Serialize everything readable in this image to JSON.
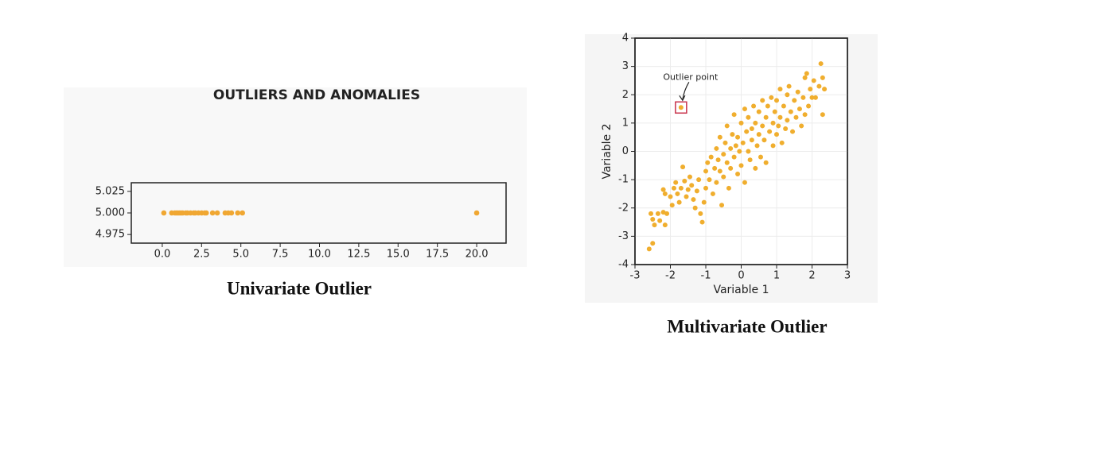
{
  "chart_data": [
    {
      "type": "scatter",
      "title": "OUTLIERS AND ANOMALIES",
      "caption": "Univariate Outlier",
      "color": "#f0a732",
      "x": [
        0.1,
        0.6,
        0.8,
        0.9,
        1.0,
        1.1,
        1.2,
        1.3,
        1.5,
        1.6,
        1.8,
        2.0,
        2.1,
        2.3,
        2.5,
        2.7,
        2.8,
        3.2,
        3.5,
        4.0,
        4.2,
        4.4,
        4.8,
        5.1,
        20.0
      ],
      "y": [
        5.0,
        5.0,
        5.0,
        5.0,
        5.0,
        5.0,
        5.0,
        5.0,
        5.0,
        5.0,
        5.0,
        5.0,
        5.0,
        5.0,
        5.0,
        5.0,
        5.0,
        5.0,
        5.0,
        5.0,
        5.0,
        5.0,
        5.0,
        5.0,
        5.0
      ],
      "xlim": [
        -1.97,
        21.87
      ],
      "ylim": [
        4.965,
        5.035
      ],
      "xticks": [
        {
          "value": 0,
          "label": "0.0"
        },
        2.5,
        {
          "value": 5,
          "label": "5.0"
        },
        7.5,
        {
          "value": 10,
          "label": "10.0"
        },
        12.5,
        {
          "value": 15,
          "label": "15.0"
        },
        17.5,
        {
          "value": 20,
          "label": "20.0"
        }
      ],
      "yticks": [
        4.975,
        {
          "value": 5,
          "label": "5.000"
        },
        5.025
      ],
      "grid": false
    },
    {
      "type": "scatter",
      "caption": "Multivariate Outlier",
      "xlabel": "Variable 1",
      "ylabel": "Variable 2",
      "color": "#f0ae2e",
      "x": [
        -2.6,
        -2.5,
        -2.55,
        -2.5,
        -2.45,
        -2.35,
        -2.3,
        -2.2,
        -2.15,
        -2.1,
        -2.2,
        -2.15,
        -2.0,
        -1.95,
        -1.9,
        -1.85,
        -1.8,
        -1.75,
        -1.7,
        -1.65,
        -1.6,
        -1.55,
        -1.5,
        -1.45,
        -1.4,
        -1.35,
        -1.3,
        -1.25,
        -1.2,
        -1.15,
        -1.1,
        -1.05,
        -1.0,
        -1.0,
        -0.95,
        -0.9,
        -0.85,
        -0.8,
        -0.75,
        -0.7,
        -0.7,
        -0.65,
        -0.6,
        -0.6,
        -0.55,
        -0.5,
        -0.5,
        -0.45,
        -0.4,
        -0.4,
        -0.35,
        -0.3,
        -0.3,
        -0.25,
        -0.2,
        -0.2,
        -0.15,
        -0.1,
        -0.1,
        -0.05,
        0.0,
        0.0,
        0.05,
        0.1,
        0.1,
        0.15,
        0.2,
        0.2,
        0.25,
        0.3,
        0.3,
        0.35,
        0.4,
        0.4,
        0.45,
        0.5,
        0.5,
        0.55,
        0.6,
        0.6,
        0.65,
        0.7,
        0.7,
        0.75,
        0.8,
        0.85,
        0.9,
        0.9,
        0.95,
        1.0,
        1.0,
        1.05,
        1.1,
        1.1,
        1.15,
        1.2,
        1.25,
        1.3,
        1.3,
        1.35,
        1.4,
        1.45,
        1.5,
        1.55,
        1.6,
        1.65,
        1.7,
        1.75,
        1.8,
        1.8,
        1.85,
        1.9,
        1.95,
        2.0,
        2.05,
        2.1,
        2.2,
        2.25,
        2.3,
        2.3,
        2.35,
        -1.7
      ],
      "y": [
        -3.45,
        -3.25,
        -2.2,
        -2.4,
        -2.6,
        -2.2,
        -2.45,
        -2.15,
        -2.6,
        -2.2,
        -1.35,
        -1.5,
        -1.6,
        -1.9,
        -1.3,
        -1.1,
        -1.5,
        -1.8,
        -1.3,
        -0.55,
        -1.05,
        -1.6,
        -1.35,
        -0.9,
        -1.2,
        -1.7,
        -2.0,
        -1.4,
        -1.0,
        -2.2,
        -2.5,
        -1.8,
        -0.7,
        -1.3,
        -0.4,
        -1.0,
        -0.2,
        -1.5,
        -0.6,
        0.1,
        -1.1,
        -0.3,
        0.5,
        -0.7,
        -1.9,
        -0.1,
        -0.9,
        0.3,
        -0.4,
        0.9,
        -1.3,
        0.1,
        -0.6,
        0.6,
        -0.2,
        1.3,
        0.2,
        -0.8,
        0.5,
        0.0,
        1.0,
        -0.5,
        0.3,
        1.5,
        -1.1,
        0.7,
        0.0,
        1.2,
        -0.3,
        0.8,
        0.4,
        1.6,
        -0.6,
        1.0,
        0.2,
        1.4,
        0.6,
        -0.2,
        1.8,
        0.9,
        0.4,
        1.2,
        -0.4,
        1.6,
        0.7,
        1.9,
        1.0,
        0.2,
        1.4,
        0.6,
        1.8,
        0.9,
        2.2,
        1.2,
        0.3,
        1.6,
        0.8,
        2.0,
        1.1,
        2.3,
        1.4,
        0.7,
        1.8,
        1.2,
        2.1,
        1.5,
        0.9,
        1.9,
        2.6,
        1.3,
        2.75,
        1.6,
        2.2,
        1.9,
        2.5,
        1.9,
        2.3,
        3.1,
        2.6,
        1.3,
        2.2,
        1.55
      ],
      "annotation": {
        "text": "Outlier point",
        "x": -1.7,
        "y": 1.55
      },
      "xlim": [
        -3,
        3
      ],
      "ylim": [
        -4,
        4
      ],
      "xticks": [
        -3,
        -2,
        -1,
        0,
        1,
        2,
        3
      ],
      "yticks": [
        -4,
        -3,
        -2,
        -1,
        0,
        1,
        2,
        3,
        4
      ],
      "grid": true
    }
  ]
}
